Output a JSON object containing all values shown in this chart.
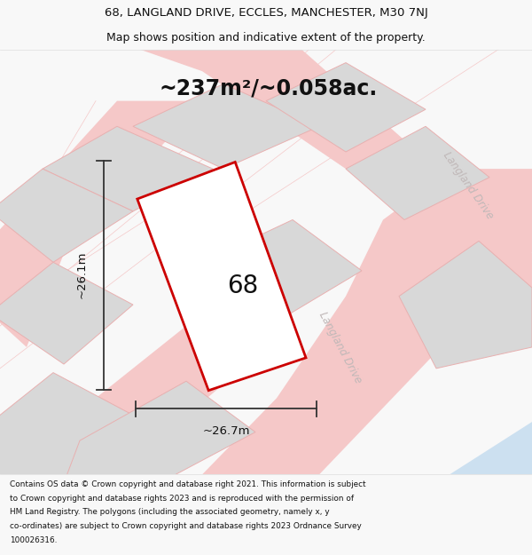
{
  "title_line1": "68, LANGLAND DRIVE, ECCLES, MANCHESTER, M30 7NJ",
  "title_line2": "Map shows position and indicative extent of the property.",
  "area_text": "~237m²/~0.058ac.",
  "number_label": "68",
  "dim_horizontal": "~26.7m",
  "dim_vertical": "~26.1m",
  "footer_lines": [
    "Contains OS data © Crown copyright and database right 2021. This information is subject",
    "to Crown copyright and database rights 2023 and is reproduced with the permission of",
    "HM Land Registry. The polygons (including the associated geometry, namely x, y",
    "co-ordinates) are subject to Crown copyright and database rights 2023 Ordnance Survey",
    "100026316."
  ],
  "bg_color": "#f8f8f8",
  "map_bg": "#ffffff",
  "road_color": "#f5c8c8",
  "road_label_color": "#c0b8b8",
  "property_fill": "#ffffff",
  "property_edge": "#cc0000",
  "neighbor_fill": "#d8d8d8",
  "neighbor_edge": "#e8b0b0",
  "water_color": "#cce0f0",
  "dim_line_color": "#333333",
  "text_color": "#111111",
  "title_fontsize": 9.5,
  "subtitle_fontsize": 9.0,
  "area_fontsize": 17,
  "label_fontsize": 20,
  "footer_fontsize": 6.4,
  "road_label_fontsize": 8.5,
  "dim_fontsize": 9.5
}
